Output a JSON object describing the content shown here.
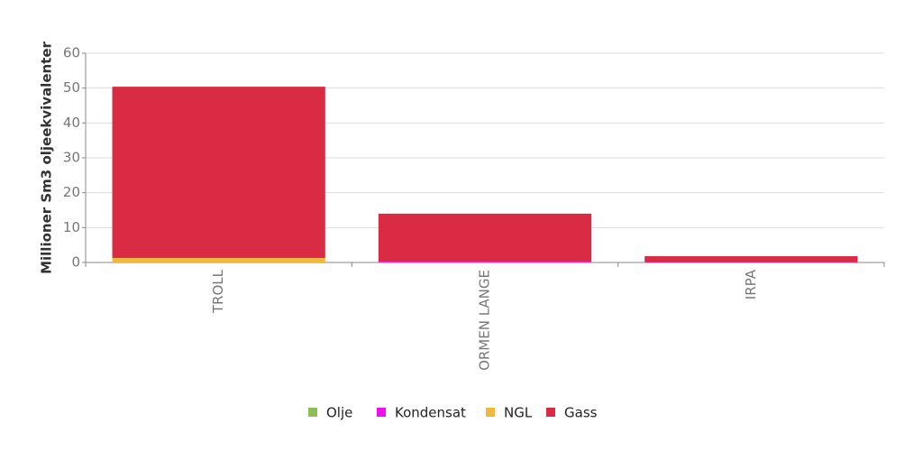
{
  "chart_data": {
    "type": "bar",
    "stacked": true,
    "y_label": "Millioner Sm3 oljeekvivalenter",
    "categories": [
      "TROLL",
      "ORMEN LANGE",
      "IRPA"
    ],
    "series": [
      {
        "name": "Olje",
        "color": "#8bbf4f",
        "values": [
          0,
          0,
          0
        ]
      },
      {
        "name": "Kondensat",
        "color": "#ee10ee",
        "values": [
          0,
          0.2,
          0.1
        ]
      },
      {
        "name": "NGL",
        "color": "#f0b83f",
        "values": [
          1.3,
          0,
          0
        ]
      },
      {
        "name": "Gass",
        "color": "#d92b44",
        "values": [
          49.1,
          13.8,
          1.7
        ]
      }
    ],
    "ylim": [
      0,
      60
    ],
    "yticks": [
      0,
      10,
      20,
      30,
      40,
      50,
      60
    ],
    "grid": true,
    "legend": "bottom"
  }
}
